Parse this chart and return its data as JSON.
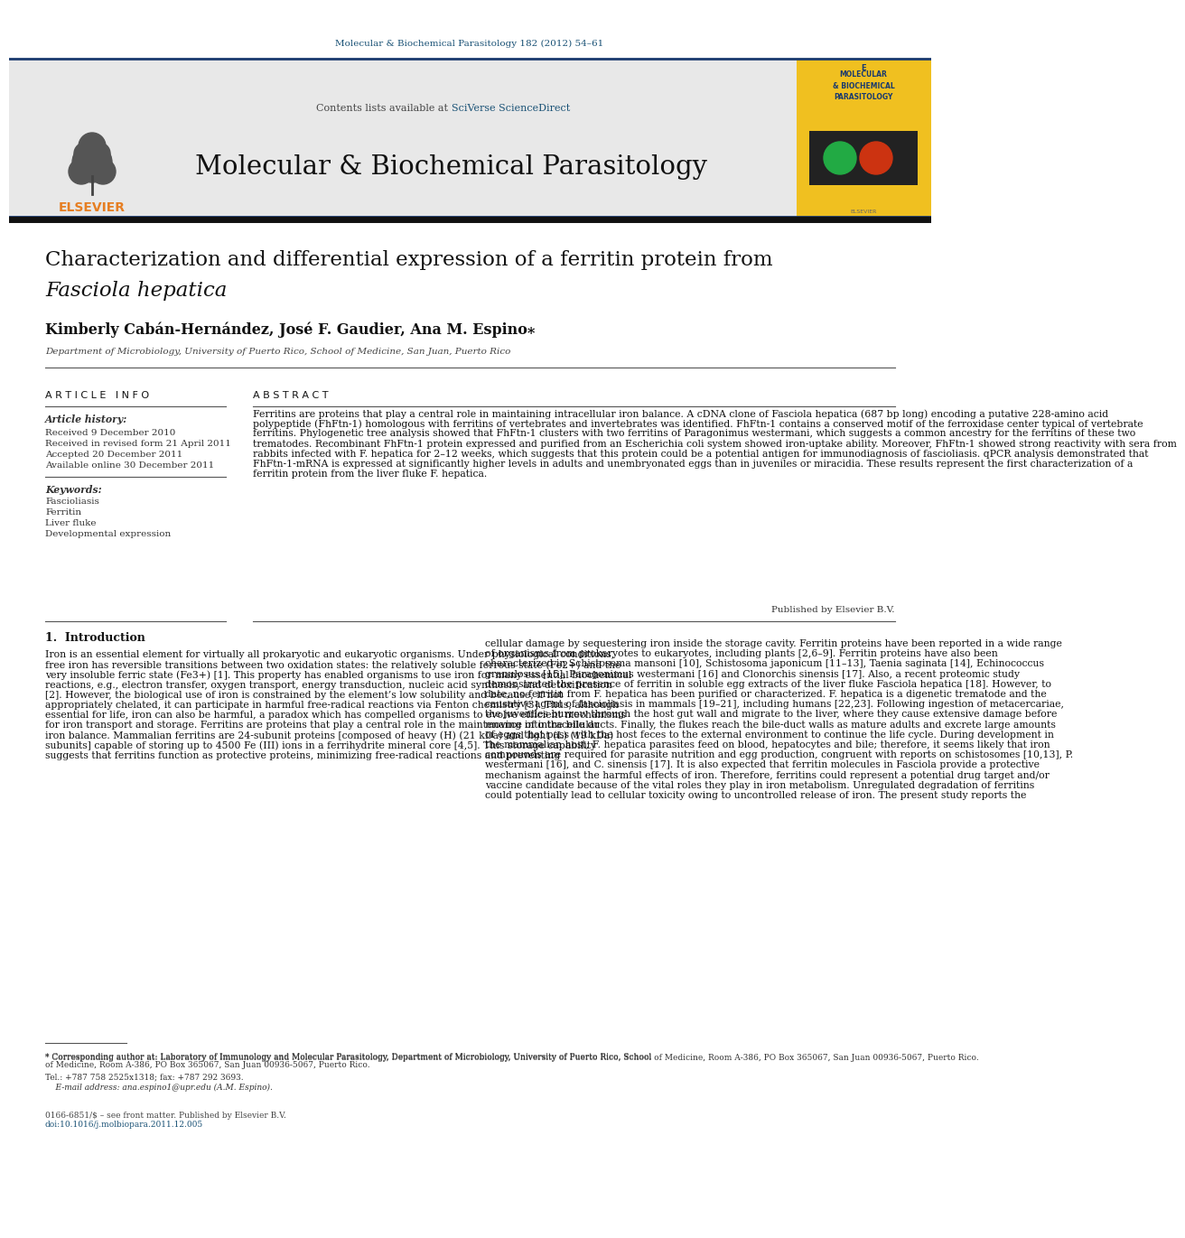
{
  "bg_color": "#ffffff",
  "top_link_text": "Molecular & Biochemical Parasitology 182 (2012) 54–61",
  "top_link_color": "#1a5276",
  "journal_header_bg": "#e8e8e8",
  "contents_text": "Contents lists available at ",
  "sciverse_text": "SciVerse ScienceDirect",
  "sciverse_color": "#1a5276",
  "journal_name": "Molecular & Biochemical Parasitology",
  "elsevier_color": "#e67e22",
  "article_title_line1": "Characterization and differential expression of a ferritin protein from",
  "article_title_line2": "Fasciola hepatica",
  "authors": "Kimberly Cabán-Hernández, José F. Gaudier, Ana M. Espino",
  "affiliation": "Department of Microbiology, University of Puerto Rico, School of Medicine, San Juan, Puerto Rico",
  "article_info_header": "A R T I C L E   I N F O",
  "article_history_label": "Article history:",
  "received1": "Received 9 December 2010",
  "received2": "Received in revised form 21 April 2011",
  "accepted": "Accepted 20 December 2011",
  "available": "Available online 30 December 2011",
  "keywords_label": "Keywords:",
  "keywords": [
    "Fascioliasis",
    "Ferritin",
    "Liver fluke",
    "Developmental expression"
  ],
  "abstract_header": "A B S T R A C T",
  "abstract_text": "Ferritins are proteins that play a central role in maintaining intracellular iron balance. A cDNA clone of Fasciola hepatica (687 bp long) encoding a putative 228-amino acid polypeptide (FhFtn-1) homologous with ferritins of vertebrates and invertebrates was identified. FhFtn-1 contains a conserved motif of the ferroxidase center typical of vertebrate ferritins. Phylogenetic tree analysis showed that FhFtn-1 clusters with two ferritins of Paragonimus westermani, which suggests a common ancestry for the ferritins of these two trematodes. Recombinant FhFtn-1 protein expressed and purified from an Escherichia coli system showed iron-uptake ability. Moreover, FhFtn-1 showed strong reactivity with sera from rabbits infected with F. hepatica for 2–12 weeks, which suggests that this protein could be a potential antigen for immunodiagnosis of fascioliasis. qPCR analysis demonstrated that FhFtn-1-mRNA is expressed at significantly higher levels in adults and unembryonated eggs than in juveniles or miracidia. These results represent the first characterization of a ferritin protein from the liver fluke F. hepatica.",
  "published_by": "Published by Elsevier B.V.",
  "intro_header": "1.  Introduction",
  "intro_left": "Iron is an essential element for virtually all prokaryotic and eukaryotic organisms. Under physiological conditions, free iron has reversible transitions between two oxidation states: the relatively soluble ferrous state (Fe2+) and the very insoluble ferric state (Fe3+) [1]. This property has enabled organisms to use iron for many essential biochemical reactions, e.g., electron transfer, oxygen transport, energy transduction, nucleic acid synthesis, and detoxification [2]. However, the biological use of iron is constrained by the element’s low solubility and because, if not appropriately chelated, it can participate in harmful free-radical reactions via Fenton chemistry [3]. Thus, although essential for life, iron can also be harmful, a paradox which has compelled organisms to evolve efficient mechanisms for iron transport and storage. Ferritins are proteins that play a central role in the maintenance of intracellular iron balance. Mammalian ferritins are 24-subunit proteins [composed of heavy (H) (21 kDa) and light (L) (19 kDa) subunits] capable of storing up to 4500 Fe (III) ions in a ferrihydrite mineral core [4,5]. This storage capability suggests that ferritins function as protective proteins, minimizing free-radical reactions and preventing",
  "intro_right": "cellular damage by sequestering iron inside the storage cavity. Ferritin proteins have been reported in a wide range of organisms from prokaryotes to eukaryotes, including plants [2,6–9]. Ferritin proteins have also been characterized in Schistosoma mansoni [10], Schistosoma japonicum [11–13], Taenia saginata [14], Echinococcus granulosus [15], Paragonimus westermani [16] and Clonorchis sinensis [17]. Also, a recent proteomic study demonstrated the presence of ferritin in soluble egg extracts of the liver fluke Fasciola hepatica [18]. However, to date, no ferritin from F. hepatica has been purified or characterized.\n    F. hepatica is a digenetic trematode and the causative agent of fascioliasis in mammals [19–21], including humans [22,23]. Following ingestion of metacercariae, the juveniles burrow through the host gut wall and migrate to the liver, where they cause extensive damage before moving into the bile ducts. Finally, the flukes reach the bile-duct walls as mature adults and excrete large amounts of eggs that pass with the host feces to the external environment to continue the life cycle. During development in the mammalian host, F. hepatica parasites feed on blood, hepatocytes and bile; therefore, it seems likely that iron compounds are required for parasite nutrition and egg production, congruent with reports on schistosomes [10,13], P. westermani [16], and C. sinensis [17]. It is also expected that ferritin molecules in Fasciola provide a protective mechanism against the harmful effects of iron. Therefore, ferritins could represent a potential drug target and/or vaccine candidate because of the vital roles they play in iron metabolism. Unregulated degradation of ferritins could potentially lead to cellular toxicity owing to uncontrolled release of iron. The present study reports the",
  "footnote_star": "* Corresponding author at: Laboratory of Immunology and Molecular Parasitology, Department of Microbiology, University of Puerto Rico, School of Medicine, Room A-386, PO Box 365067, San Juan 00936-5067, Puerto Rico.",
  "footnote_tel": "Tel.: +787 758 2525x1318; fax: +787 292 3693.",
  "footnote_email": "E-mail address: ana.espino1@upr.edu (A.M. Espino).",
  "copyright_text1": "0166-6851/$ – see front matter. Published by Elsevier B.V.",
  "copyright_text2": "doi:10.1016/j.molbiopara.2011.12.005"
}
